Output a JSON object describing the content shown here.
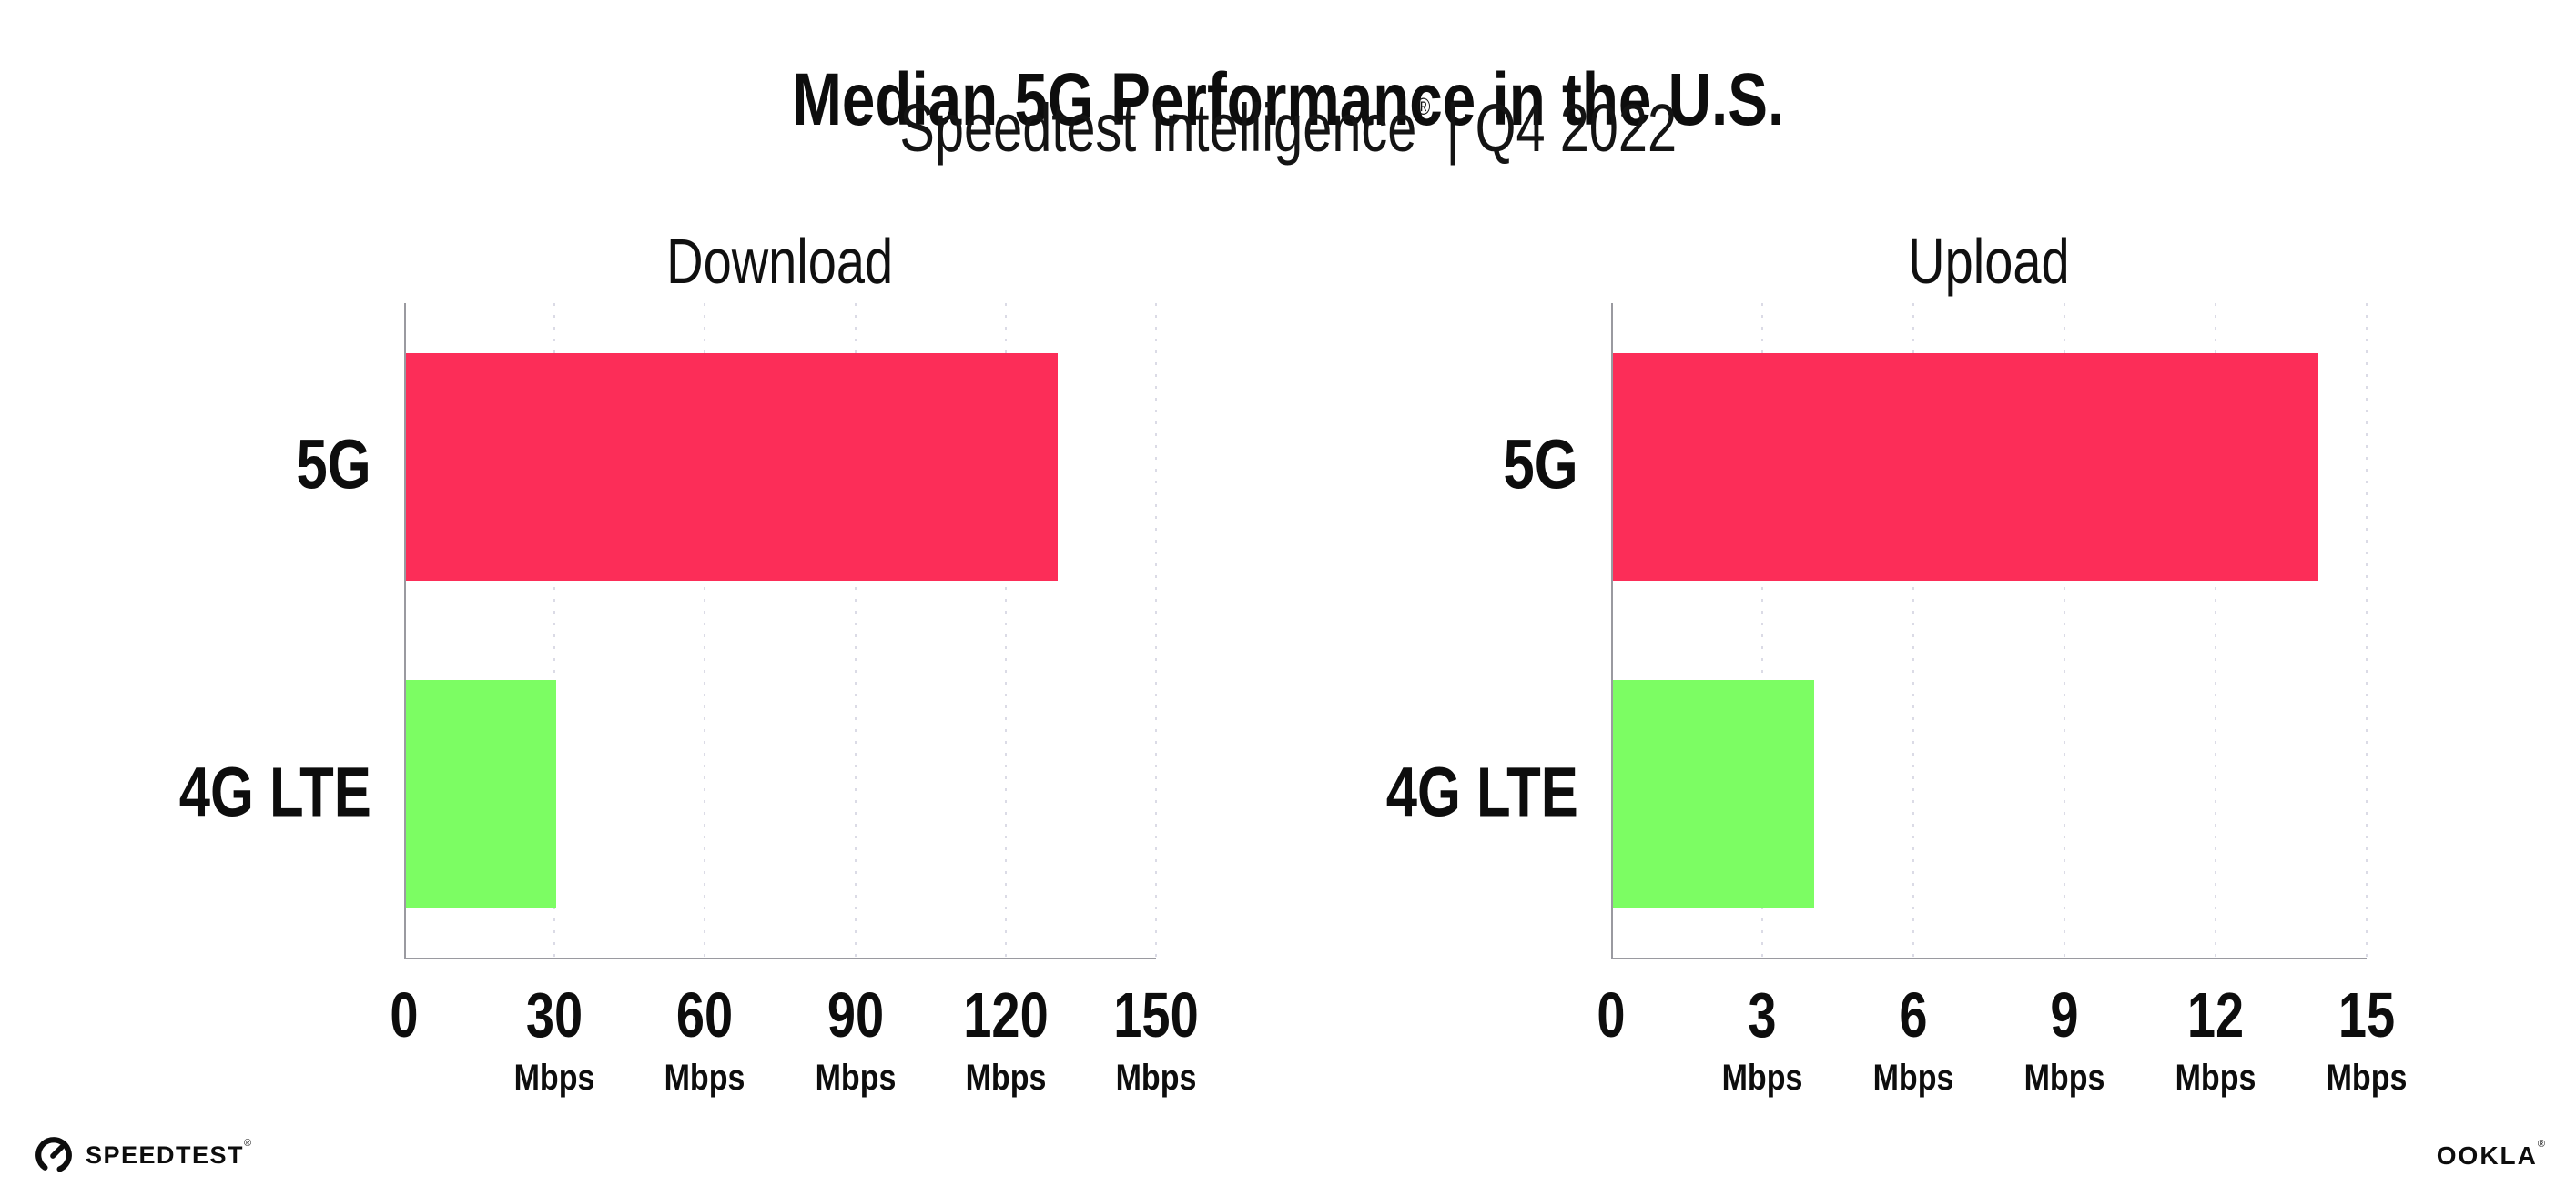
{
  "header": {
    "title": "Median 5G Performance in the U.S.",
    "subtitle_brand": "Speedtest Intelligence",
    "subtitle_reg": "®",
    "subtitle_sep": "|",
    "subtitle_period": "Q4 2022"
  },
  "colors": {
    "bar_5g": "#FC2D58",
    "bar_4g_lte": "#7CFD63",
    "gridline": "#DBDBE6",
    "axis": "#9A9AA0",
    "text": "#0D0D0D"
  },
  "chart_data": [
    {
      "type": "bar",
      "orientation": "horizontal",
      "title": "Download",
      "categories": [
        "5G",
        "4G LTE"
      ],
      "values": [
        130,
        30
      ],
      "bar_colors": [
        "#FC2D58",
        "#7CFD63"
      ],
      "xlim": [
        0,
        150
      ],
      "xticks": [
        0,
        30,
        60,
        90,
        120,
        150
      ],
      "tick_unit": "Mbps",
      "grid": "dotted-vertical",
      "legend": "none"
    },
    {
      "type": "bar",
      "orientation": "horizontal",
      "title": "Upload",
      "categories": [
        "5G",
        "4G LTE"
      ],
      "values": [
        14,
        4
      ],
      "bar_colors": [
        "#FC2D58",
        "#7CFD63"
      ],
      "xlim": [
        0,
        15
      ],
      "xticks": [
        0,
        3,
        6,
        9,
        12,
        15
      ],
      "tick_unit": "Mbps",
      "grid": "dotted-vertical",
      "legend": "none"
    }
  ],
  "footer": {
    "speedtest_label": "SPEEDTEST",
    "speedtest_reg": "®",
    "ookla_label": "OOKLA",
    "ookla_reg": "®"
  }
}
